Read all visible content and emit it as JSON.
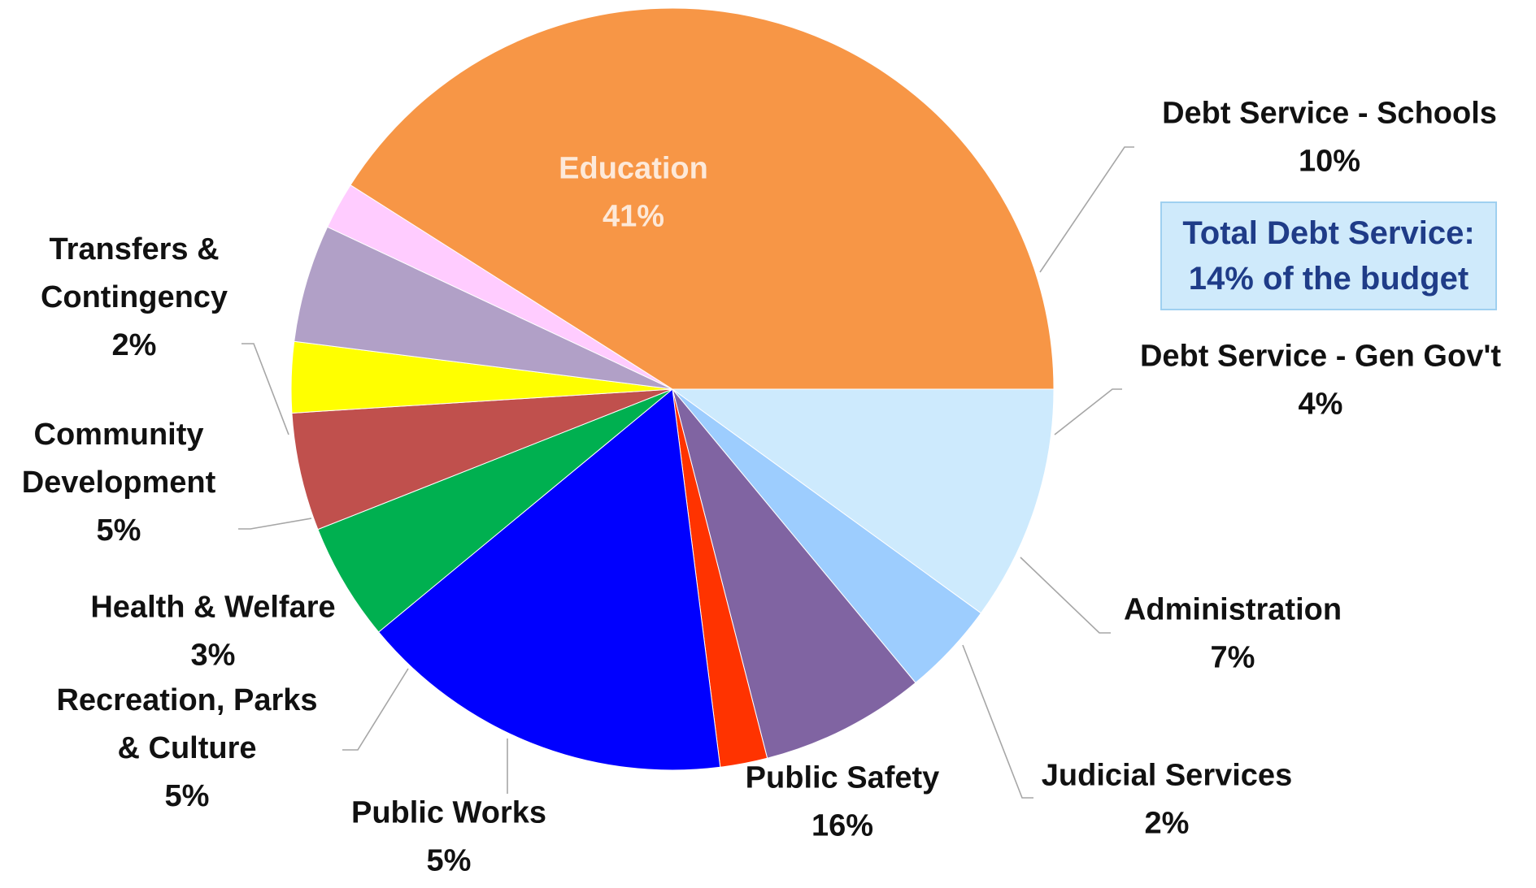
{
  "chart_data": {
    "type": "pie",
    "title": "",
    "start_slice": "Debt Service - Schools",
    "direction": "clockwise",
    "slices": [
      {
        "name": "Debt Service - Schools",
        "percent_label": "10%",
        "value": 10,
        "color": "#cdeafd"
      },
      {
        "name": "Debt Service - Gen Gov't",
        "percent_label": "4%",
        "value": 4,
        "color": "#9dcdfe"
      },
      {
        "name": "Administration",
        "percent_label": "7%",
        "value": 7,
        "color": "#8064a2"
      },
      {
        "name": "Judicial Services",
        "percent_label": "2%",
        "value": 2,
        "color": "#ff3300"
      },
      {
        "name": "Public Safety",
        "percent_label": "16%",
        "value": 16,
        "color": "#0000ff"
      },
      {
        "name": "Public Works",
        "percent_label": "5%",
        "value": 5,
        "color": "#00b050"
      },
      {
        "name": "Recreation, Parks & Culture",
        "percent_label": "5%",
        "value": 5,
        "color": "#c0504d"
      },
      {
        "name": "Health & Welfare",
        "percent_label": "3%",
        "value": 3,
        "color": "#ffff00"
      },
      {
        "name": "Community Development",
        "percent_label": "5%",
        "value": 5,
        "color": "#b1a0c7"
      },
      {
        "name": "Transfers & Contingency",
        "percent_label": "2%",
        "value": 2,
        "color": "#ffccff"
      },
      {
        "name": "Education",
        "percent_label": "41%",
        "value": 41,
        "color": "#f79646"
      }
    ]
  },
  "callout": {
    "line1": "Total Debt Service:",
    "line2": "14% of the budget"
  }
}
